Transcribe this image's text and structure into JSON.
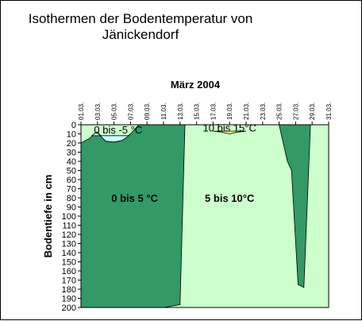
{
  "chart_data": {
    "type": "area",
    "title": "Isothermen der Bodentemperatur von Jänickendorf",
    "title_lines": [
      "Isothermen der Bodentemperatur von",
      "Jänickendorf"
    ],
    "x_axis_title": "März 2004",
    "ylabel": "Bodentiefe in cm",
    "x_ticks": [
      "01.03.",
      "03.03.",
      "05.03.",
      "07.03.",
      "09.03.",
      "11.03.",
      "13.03.",
      "15.03.",
      "17.03.",
      "19.03.",
      "21.03.",
      "23.03.",
      "25.03.",
      "27.03.",
      "29.03.",
      "31.03."
    ],
    "x_range": [
      1,
      31
    ],
    "ylim": [
      0,
      200
    ],
    "y_ticks": [
      0,
      10,
      20,
      30,
      40,
      50,
      60,
      70,
      80,
      90,
      100,
      110,
      120,
      130,
      140,
      150,
      160,
      170,
      180,
      190,
      200
    ],
    "y_reversed": true,
    "bands": [
      {
        "name": "0 bis 5 °C",
        "label": "0 bis 5 °C",
        "color": "#339966",
        "label_at": [
          7.5,
          80
        ],
        "polygon": [
          [
            1,
            20
          ],
          [
            2,
            15
          ],
          [
            3,
            8
          ],
          [
            4,
            18
          ],
          [
            5,
            19
          ],
          [
            6,
            17
          ],
          [
            7,
            10
          ],
          [
            8,
            0
          ],
          [
            13.6,
            0
          ],
          [
            13,
            197
          ],
          [
            11,
            200
          ],
          [
            1,
            200
          ]
        ]
      },
      {
        "name": "0 bis 5 °C",
        "label": "",
        "color": "#339966",
        "label_at": null,
        "polygon": [
          [
            25,
            0
          ],
          [
            26,
            40
          ],
          [
            26.5,
            50
          ],
          [
            27.3,
            175
          ],
          [
            28,
            178
          ],
          [
            28.8,
            0
          ]
        ]
      },
      {
        "name": "0 bis -5 °C",
        "label": "0 bis -5 °C",
        "color": "#ccffff",
        "label_at": [
          5.5,
          5
        ],
        "polygon": [
          [
            2.3,
            12
          ],
          [
            2.9,
            8
          ],
          [
            4,
            18
          ],
          [
            5,
            19
          ],
          [
            6,
            17
          ],
          [
            6.8,
            12
          ]
        ]
      },
      {
        "name": "5 bis 10°C",
        "label": "5 bis 10°C",
        "color": "#ccffcc",
        "label_at": [
          19,
          80
        ],
        "polygon": []
      },
      {
        "name": "10 bis 15°C",
        "label": "10 bis 15°C",
        "color": "#ffff99",
        "label_at": [
          19,
          3
        ],
        "polygon": [
          [
            17,
            7
          ],
          [
            18,
            8
          ],
          [
            19,
            10
          ],
          [
            20,
            8
          ],
          [
            21,
            7
          ]
        ]
      }
    ]
  }
}
